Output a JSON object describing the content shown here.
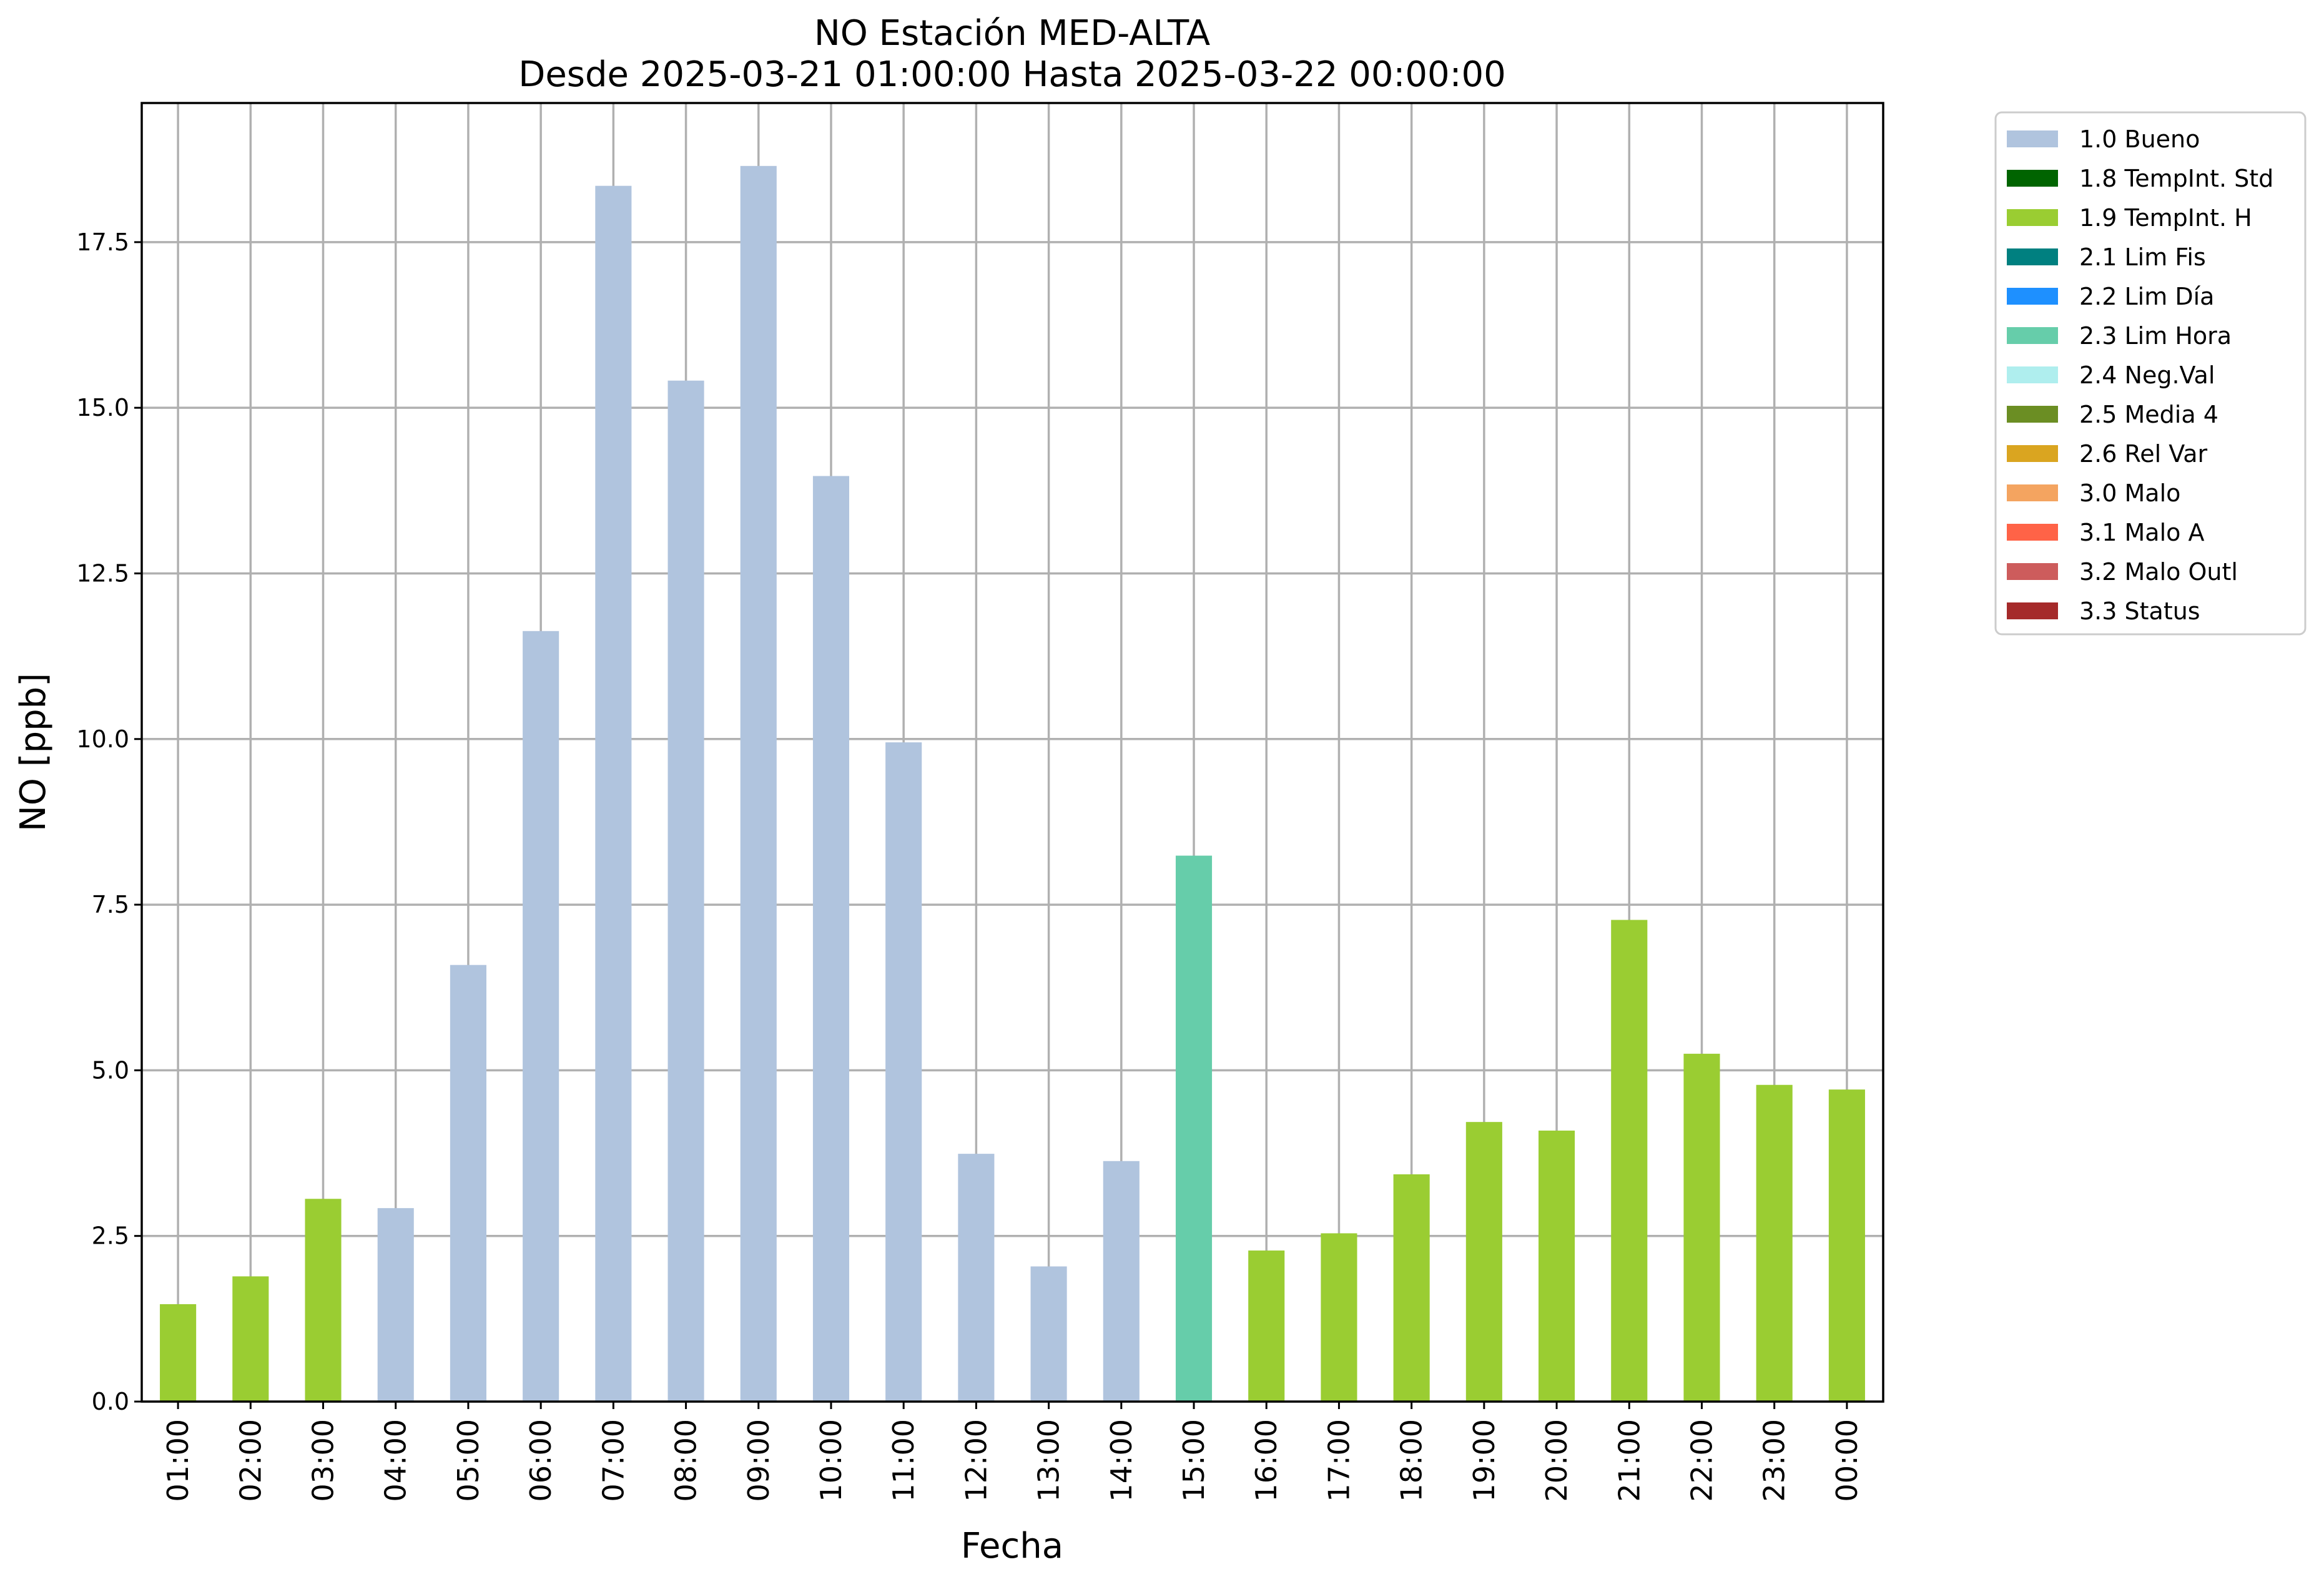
{
  "chart_data": {
    "type": "bar",
    "title": "NO Estación MED-ALTA",
    "subtitle": "Desde 2025-03-21 01:00:00 Hasta 2025-03-22 00:00:00",
    "xlabel": "Fecha",
    "ylabel": "NO [ppb]",
    "ylim": [
      0,
      19.6
    ],
    "yticks": [
      "0.0",
      "2.5",
      "5.0",
      "7.5",
      "10.0",
      "12.5",
      "15.0",
      "17.5"
    ],
    "categories": [
      "01:00",
      "02:00",
      "03:00",
      "04:00",
      "05:00",
      "06:00",
      "07:00",
      "08:00",
      "09:00",
      "10:00",
      "11:00",
      "12:00",
      "13:00",
      "14:00",
      "15:00",
      "16:00",
      "17:00",
      "18:00",
      "19:00",
      "20:00",
      "21:00",
      "22:00",
      "23:00",
      "00:00"
    ],
    "values": [
      1.47,
      1.89,
      3.06,
      2.92,
      6.59,
      11.63,
      18.35,
      15.41,
      18.65,
      13.97,
      9.95,
      3.74,
      2.04,
      3.63,
      8.24,
      2.28,
      2.54,
      3.43,
      4.22,
      4.09,
      7.27,
      5.25,
      4.78,
      4.71
    ],
    "quality_codes": [
      "1.9",
      "1.9",
      "1.9",
      "1.0",
      "1.0",
      "1.0",
      "1.0",
      "1.0",
      "1.0",
      "1.0",
      "1.0",
      "1.0",
      "1.0",
      "1.0",
      "2.3",
      "1.9",
      "1.9",
      "1.9",
      "1.9",
      "1.9",
      "1.9",
      "1.9",
      "1.9",
      "1.9"
    ],
    "grid": true,
    "legend_placement": "outside-top-right",
    "legend": [
      {
        "code": "1.0",
        "label": "1.0 Bueno",
        "color": "#b0c4de"
      },
      {
        "code": "1.8",
        "label": "1.8 TempInt. Std",
        "color": "#006400"
      },
      {
        "code": "1.9",
        "label": "1.9 TempInt. H",
        "color": "#9acd32"
      },
      {
        "code": "2.1",
        "label": "2.1 Lim Fis",
        "color": "#008080"
      },
      {
        "code": "2.2",
        "label": "2.2 Lim Día",
        "color": "#1e90ff"
      },
      {
        "code": "2.3",
        "label": "2.3 Lim Hora",
        "color": "#66cdaa"
      },
      {
        "code": "2.4",
        "label": "2.4 Neg.Val",
        "color": "#afeeee"
      },
      {
        "code": "2.5",
        "label": "2.5 Media 4",
        "color": "#6b8e23"
      },
      {
        "code": "2.6",
        "label": "2.6 Rel Var",
        "color": "#daa520"
      },
      {
        "code": "3.0",
        "label": "3.0 Malo",
        "color": "#f4a460"
      },
      {
        "code": "3.1",
        "label": "3.1 Malo A",
        "color": "#ff6347"
      },
      {
        "code": "3.2",
        "label": "3.2 Malo Outl",
        "color": "#cd5c5c"
      },
      {
        "code": "3.3",
        "label": "3.3 Status",
        "color": "#a52a2a"
      }
    ]
  }
}
